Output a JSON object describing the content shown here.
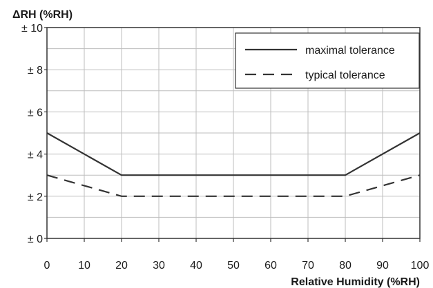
{
  "chart_data": {
    "type": "line",
    "ylabel": "ΔRH (%RH)",
    "xlabel": "Relative Humidity (%RH)",
    "xlim": [
      0,
      100
    ],
    "ylim": [
      0,
      10
    ],
    "x_ticks": [
      0,
      10,
      20,
      30,
      40,
      50,
      60,
      70,
      80,
      90,
      100
    ],
    "x_tick_labels": [
      "0",
      "10",
      "20",
      "30",
      "40",
      "50",
      "60",
      "70",
      "80",
      "90",
      "100"
    ],
    "y_ticks": [
      0,
      2,
      4,
      6,
      8,
      10
    ],
    "y_tick_labels": [
      "± 0",
      "± 2",
      "± 4",
      "± 6",
      "± 8",
      "± 10"
    ],
    "grid": true,
    "legend_position": "top-right",
    "series": [
      {
        "name": "maximal tolerance",
        "style": "solid",
        "color": "#333333",
        "x": [
          0,
          20,
          80,
          100
        ],
        "y": [
          5,
          3,
          3,
          5
        ]
      },
      {
        "name": "typical tolerance",
        "style": "dashed",
        "color": "#333333",
        "x": [
          0,
          20,
          80,
          100
        ],
        "y": [
          3,
          2,
          2,
          3
        ]
      }
    ]
  }
}
